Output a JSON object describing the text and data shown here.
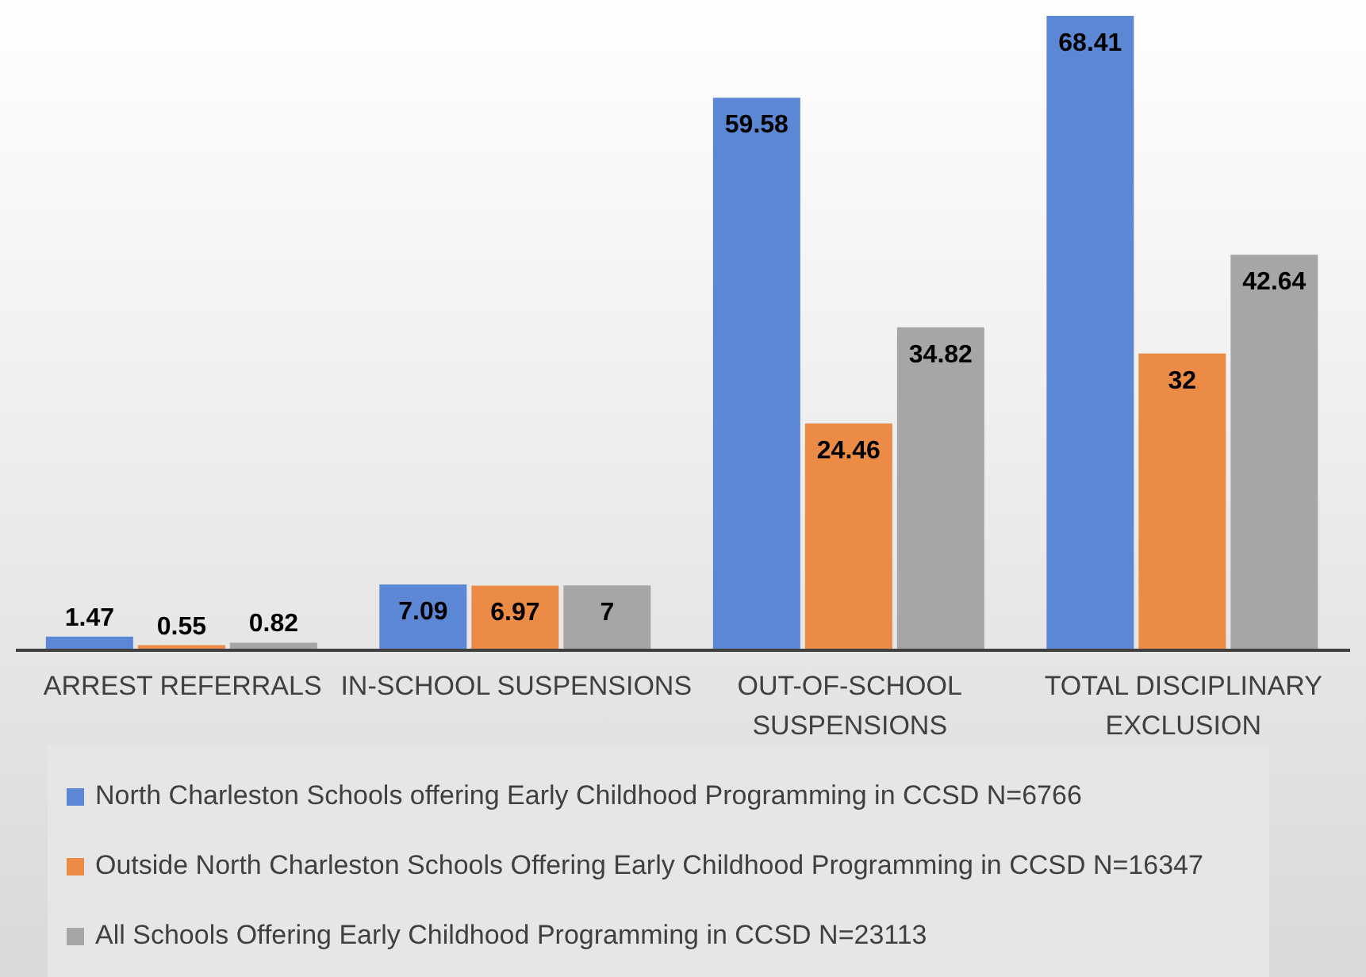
{
  "chart_data": {
    "type": "bar",
    "categories": [
      "ARREST REFERRALS",
      "IN-SCHOOL SUSPENSIONS",
      "OUT-OF-SCHOOL SUSPENSIONS",
      "TOTAL DISCIPLINARY EXCLUSION"
    ],
    "series": [
      {
        "name": "North Charleston Schools offering Early Childhood Programming in CCSD N=6766",
        "color": "#5b87d4",
        "values": [
          1.47,
          7.09,
          59.58,
          68.41
        ]
      },
      {
        "name": "Outside North Charleston Schools Offering Early Childhood Programming in CCSD N=16347",
        "color": "#ec8b45",
        "values": [
          0.55,
          6.97,
          24.46,
          32
        ]
      },
      {
        "name": "All Schools Offering Early Childhood Programming in CCSD N=23113",
        "color": "#a6a6a6",
        "values": [
          0.82,
          7,
          34.82,
          42.64
        ]
      }
    ],
    "data_labels": true,
    "legend": "bottom",
    "grid": false
  }
}
